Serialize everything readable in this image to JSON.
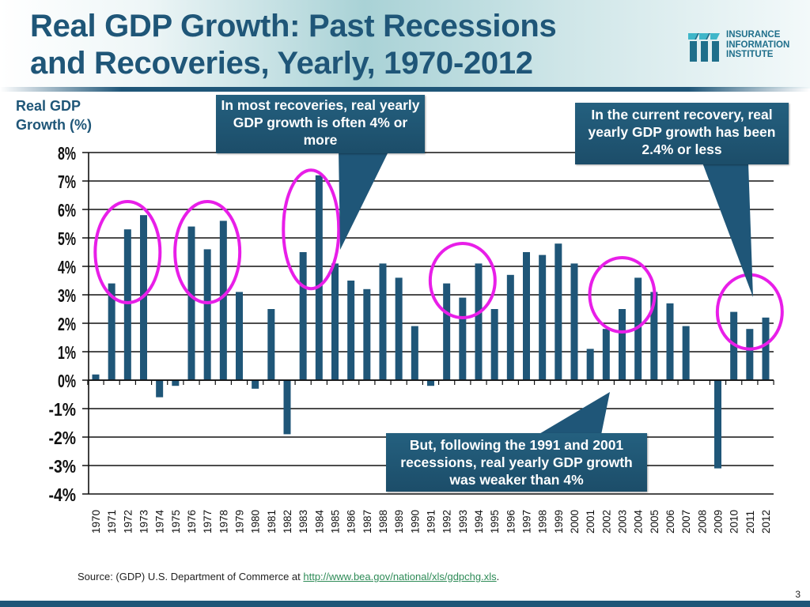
{
  "slide": {
    "title_line1": "Real GDP Growth: Past Recessions",
    "title_line2": "and Recoveries, Yearly, 1970-2012",
    "logo": {
      "icon": "iii-logo-icon",
      "line1": "INSURANCE",
      "line2": "INFORMATION",
      "line3": "INSTITUTE"
    },
    "page_number": "3",
    "source_prefix": "Source: (GDP) U.S. Department of Commerce at ",
    "source_link": "http://www.bea.gov/national/xls/gdpchg.xls",
    "source_suffix": "."
  },
  "callouts": {
    "recoveries": "In most recoveries, real yearly GDP growth is often 4% or more",
    "current": "In the current recovery, real yearly GDP growth has been 2.4% or less",
    "weaker": "But, following the 1991 and 2001 recessions, real yearly GDP growth was weaker than 4%"
  },
  "colors": {
    "bar": "#1f5678",
    "highlight_ring": "#e81ee8",
    "title": "#1f5678"
  },
  "chart_data": {
    "type": "bar",
    "title": "Real GDP Growth: Past Recessions and Recoveries, Yearly, 1970-2012",
    "ylabel_line1": "Real GDP",
    "ylabel_line2": "Growth (%)",
    "xlabel": "",
    "ylim": [
      -4,
      8
    ],
    "yticks": [
      8,
      7,
      6,
      5,
      4,
      3,
      2,
      1,
      0,
      -1,
      -2,
      -3,
      -4
    ],
    "ytick_labels": [
      "8%",
      "7%",
      "6%",
      "5%",
      "4%",
      "3%",
      "2%",
      "1%",
      "0%",
      "-1%",
      "-2%",
      "-3%",
      "-4%"
    ],
    "grid": true,
    "legend": "none",
    "categories": [
      "1970",
      "1971",
      "1972",
      "1973",
      "1974",
      "1975",
      "1976",
      "1977",
      "1978",
      "1979",
      "1980",
      "1981",
      "1982",
      "1983",
      "1984",
      "1985",
      "1986",
      "1987",
      "1988",
      "1989",
      "1990",
      "1991",
      "1992",
      "1993",
      "1994",
      "1995",
      "1996",
      "1997",
      "1998",
      "1999",
      "2000",
      "2001",
      "2002",
      "2003",
      "2004",
      "2005",
      "2006",
      "2007",
      "2008",
      "2009",
      "2010",
      "2011",
      "2012"
    ],
    "values": [
      0.2,
      3.4,
      5.3,
      5.8,
      -0.6,
      -0.2,
      5.4,
      4.6,
      5.6,
      3.1,
      -0.3,
      2.5,
      -1.9,
      4.5,
      7.2,
      4.1,
      3.5,
      3.2,
      4.1,
      3.6,
      1.9,
      -0.2,
      3.4,
      2.9,
      4.1,
      2.5,
      3.7,
      4.5,
      4.4,
      4.8,
      4.1,
      1.1,
      1.8,
      2.5,
      3.6,
      3.1,
      2.7,
      1.9,
      0.0,
      -3.1,
      2.4,
      1.8,
      2.2
    ],
    "highlighted_groups": [
      {
        "years": [
          "1971",
          "1972",
          "1973"
        ],
        "center_value": 4.5
      },
      {
        "years": [
          "1976",
          "1977",
          "1978"
        ],
        "center_value": 4.5
      },
      {
        "years": [
          "1983",
          "1984"
        ],
        "center_value": 5.3
      },
      {
        "years": [
          "1992",
          "1993",
          "1994"
        ],
        "center_value": 3.5
      },
      {
        "years": [
          "2002",
          "2003",
          "2004"
        ],
        "center_value": 3.0
      },
      {
        "years": [
          "2010",
          "2011",
          "2012"
        ],
        "center_value": 2.4
      }
    ]
  }
}
